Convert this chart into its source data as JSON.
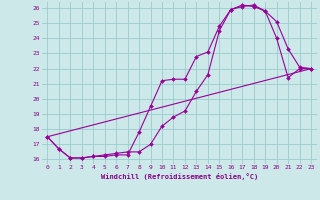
{
  "xlabel": "Windchill (Refroidissement éolien,°C)",
  "bg_color": "#cce8e8",
  "grid_color": "#99cccc",
  "line_color": "#990099",
  "xlim": [
    -0.5,
    23.5
  ],
  "ylim": [
    15.7,
    26.4
  ],
  "xticks": [
    0,
    1,
    2,
    3,
    4,
    5,
    6,
    7,
    8,
    9,
    10,
    11,
    12,
    13,
    14,
    15,
    16,
    17,
    18,
    19,
    20,
    21,
    22,
    23
  ],
  "yticks": [
    16,
    17,
    18,
    19,
    20,
    21,
    22,
    23,
    24,
    25,
    26
  ],
  "line1_x": [
    0,
    1,
    2,
    3,
    4,
    5,
    6,
    7,
    8,
    9,
    10,
    11,
    12,
    13,
    14,
    15,
    16,
    17,
    18,
    19,
    20,
    21,
    22,
    23
  ],
  "line1_y": [
    17.5,
    16.7,
    16.1,
    16.1,
    16.2,
    16.2,
    16.3,
    16.3,
    17.8,
    19.5,
    21.2,
    21.3,
    21.3,
    22.8,
    23.1,
    24.8,
    25.9,
    26.1,
    26.2,
    25.8,
    25.1,
    23.3,
    22.1,
    22.0
  ],
  "line2_x": [
    0,
    1,
    2,
    3,
    4,
    5,
    6,
    7,
    8,
    9,
    10,
    11,
    12,
    13,
    14,
    15,
    16,
    17,
    18,
    19,
    20,
    21,
    22,
    23
  ],
  "line2_y": [
    17.5,
    16.7,
    16.1,
    16.1,
    16.2,
    16.3,
    16.4,
    16.5,
    16.5,
    17.0,
    18.2,
    18.8,
    19.2,
    20.5,
    21.6,
    24.5,
    25.9,
    26.2,
    26.1,
    25.8,
    24.0,
    21.4,
    22.0,
    22.0
  ],
  "line3_x": [
    0,
    23
  ],
  "line3_y": [
    17.5,
    22.0
  ]
}
